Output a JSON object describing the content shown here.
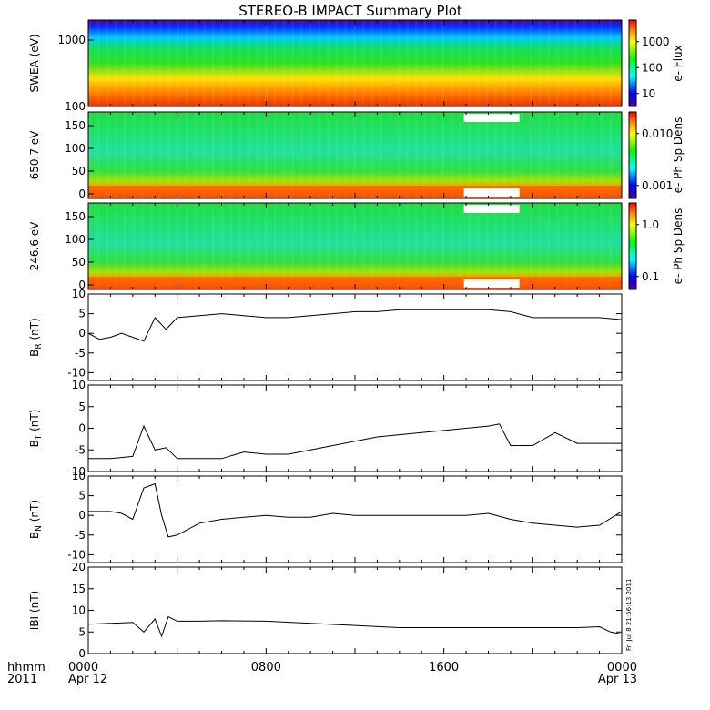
{
  "title": "STEREO-B IMPACT Summary Plot",
  "footer": {
    "left_top": "hhmm",
    "left_bottom": "2011",
    "stamp": "Fri Jul 8 21:56:13 2011"
  },
  "chart_data": [
    {
      "type": "heatmap",
      "ylabel": "SWEA (eV)",
      "yscale": "log",
      "yticks": [
        "1000",
        "100"
      ],
      "ylim": [
        100,
        2000
      ],
      "colorbar_label": "e- Flux",
      "colorbar_ticks": [
        "1000",
        "100",
        "10"
      ],
      "colorbar_scale": "log",
      "data_gap": null
    },
    {
      "type": "heatmap",
      "ylabel": "650.7 eV",
      "yticks": [
        "150",
        "100",
        "50",
        "0"
      ],
      "ylim": [
        -10,
        180
      ],
      "colorbar_label": "e- Ph Sp Dens",
      "colorbar_ticks": [
        "0.010",
        "0.001"
      ],
      "colorbar_scale": "log",
      "data_gap": {
        "start_hour": 16.9,
        "end_hour": 19.4
      }
    },
    {
      "type": "heatmap",
      "ylabel": "246.6 eV",
      "yticks": [
        "150",
        "100",
        "50",
        "0"
      ],
      "ylim": [
        -10,
        180
      ],
      "colorbar_label": "e- Ph Sp Dens",
      "colorbar_ticks": [
        "1.0",
        "0.1"
      ],
      "colorbar_scale": "log",
      "data_gap": {
        "start_hour": 16.9,
        "end_hour": 19.4
      }
    },
    {
      "type": "line",
      "ylabel": "BR (nT)",
      "ylabel_main": "B",
      "ylabel_sub": "R",
      "ylabel_unit": "(nT)",
      "ylim": [
        -12,
        10
      ],
      "yticks": [
        "10",
        "5",
        "0",
        "-5",
        "-10"
      ],
      "x_hours": [
        0,
        0.5,
        1,
        1.5,
        2,
        2.5,
        3,
        3.5,
        4,
        5,
        6,
        7,
        8,
        9,
        10,
        11,
        12,
        13,
        14,
        15,
        16,
        17,
        18,
        19,
        20,
        21,
        22,
        23,
        24
      ],
      "values": [
        0,
        -1.5,
        -1,
        0,
        -1,
        -2,
        4,
        1,
        4,
        4.5,
        5,
        4.5,
        4,
        4,
        4.5,
        5,
        5.5,
        5.5,
        6,
        6,
        6,
        6,
        6,
        5.5,
        4,
        4,
        4,
        4,
        3.5
      ]
    },
    {
      "type": "line",
      "ylabel": "BT (nT)",
      "ylabel_main": "B",
      "ylabel_sub": "T",
      "ylabel_unit": "(nT)",
      "ylim": [
        -10,
        10
      ],
      "yticks": [
        "10",
        "5",
        "0",
        "-5",
        "-10"
      ],
      "x_hours": [
        0,
        1,
        2,
        2.5,
        3,
        3.5,
        4,
        5,
        6,
        7,
        8,
        9,
        10,
        11,
        12,
        13,
        14,
        15,
        16,
        17,
        18,
        18.5,
        19,
        20,
        21,
        22,
        23,
        24
      ],
      "values": [
        -7,
        -7,
        -6.5,
        0.5,
        -5,
        -4.5,
        -7,
        -7,
        -7,
        -5.5,
        -6,
        -6,
        -5,
        -4,
        -3,
        -2,
        -1.5,
        -1,
        -0.5,
        0,
        0.5,
        1,
        -4,
        -4,
        -1,
        -3.5,
        -3.5,
        -3.5
      ]
    },
    {
      "type": "line",
      "ylabel": "BN (nT)",
      "ylabel_main": "B",
      "ylabel_sub": "N",
      "ylabel_unit": "(nT)",
      "ylim": [
        -12,
        10
      ],
      "yticks": [
        "10",
        "5",
        "0",
        "-5",
        "-10"
      ],
      "x_hours": [
        0,
        1,
        1.5,
        2,
        2.5,
        3,
        3.3,
        3.6,
        4,
        5,
        6,
        7,
        8,
        9,
        10,
        11,
        12,
        13,
        14,
        15,
        16,
        17,
        18,
        19,
        20,
        21,
        22,
        23,
        24
      ],
      "values": [
        1,
        1,
        0.5,
        -1,
        7,
        8,
        0,
        -5.5,
        -5,
        -2,
        -1,
        -0.5,
        0,
        -0.5,
        -0.5,
        0.5,
        0,
        0,
        0,
        0,
        0,
        0,
        0.5,
        -1,
        -2,
        -2.5,
        -3,
        -2.5,
        1
      ]
    },
    {
      "type": "line",
      "ylabel": "IBI (nT)",
      "ylim": [
        0,
        20
      ],
      "yticks": [
        "20",
        "15",
        "10",
        "5",
        "0"
      ],
      "x_hours": [
        0,
        1,
        2,
        2.5,
        3,
        3.3,
        3.6,
        4,
        5,
        6,
        8,
        10,
        12,
        14,
        16,
        18,
        20,
        22,
        23,
        23.5,
        24
      ],
      "values": [
        6.8,
        7,
        7.2,
        5,
        8,
        4,
        8.5,
        7.5,
        7.5,
        7.6,
        7.5,
        7,
        6.5,
        6,
        6,
        6,
        6,
        6,
        6.2,
        5,
        4.5
      ]
    }
  ],
  "xaxis": {
    "ticks": [
      {
        "hour": 0,
        "line1": "0000",
        "line2": "Apr 12"
      },
      {
        "hour": 8,
        "line1": "0800",
        "line2": ""
      },
      {
        "hour": 16,
        "line1": "1600",
        "line2": ""
      },
      {
        "hour": 24,
        "line1": "0000",
        "line2": "Apr 13"
      }
    ],
    "range_hours": [
      0,
      24
    ]
  },
  "colors": {
    "colormap": [
      "#ff0000",
      "#ff8800",
      "#ffff00",
      "#00ff00",
      "#00ffff",
      "#0000ff",
      "#550099"
    ]
  }
}
